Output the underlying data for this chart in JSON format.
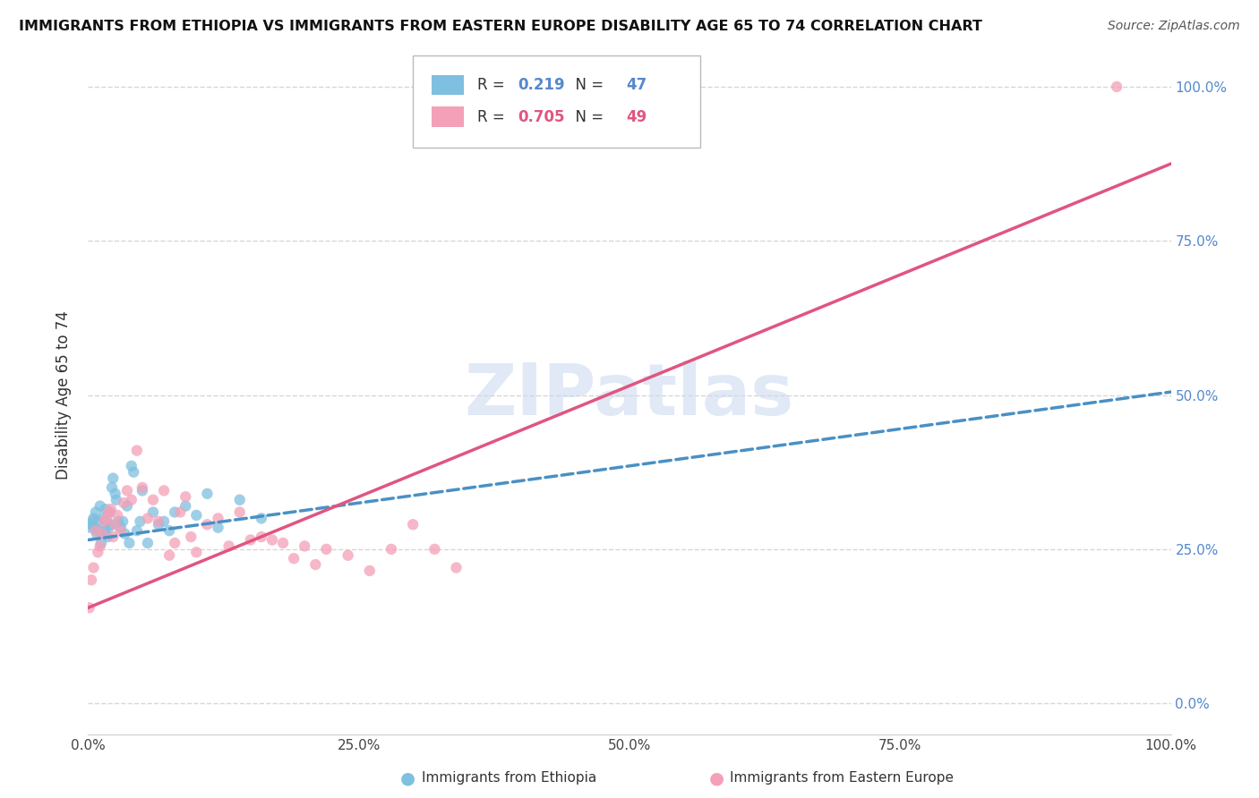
{
  "title": "IMMIGRANTS FROM ETHIOPIA VS IMMIGRANTS FROM EASTERN EUROPE DISABILITY AGE 65 TO 74 CORRELATION CHART",
  "source": "Source: ZipAtlas.com",
  "ylabel": "Disability Age 65 to 74",
  "legend_label_1": "Immigrants from Ethiopia",
  "legend_label_2": "Immigrants from Eastern Europe",
  "R1": 0.219,
  "N1": 47,
  "R2": 0.705,
  "N2": 49,
  "color1": "#7fbfdf",
  "color2": "#f4a0b8",
  "trendline1_color": "#4a90c4",
  "trendline2_color": "#e05580",
  "right_tick_color": "#5588cc",
  "xlim": [
    0.0,
    1.0
  ],
  "ylim": [
    -0.05,
    1.05
  ],
  "ethiopia_x": [
    0.002,
    0.003,
    0.004,
    0.005,
    0.006,
    0.007,
    0.008,
    0.009,
    0.01,
    0.011,
    0.012,
    0.013,
    0.014,
    0.015,
    0.016,
    0.017,
    0.018,
    0.019,
    0.02,
    0.021,
    0.022,
    0.023,
    0.025,
    0.026,
    0.028,
    0.03,
    0.032,
    0.034,
    0.036,
    0.038,
    0.04,
    0.042,
    0.045,
    0.048,
    0.05,
    0.055,
    0.06,
    0.065,
    0.07,
    0.075,
    0.08,
    0.09,
    0.1,
    0.11,
    0.12,
    0.14,
    0.16
  ],
  "ethiopia_y": [
    0.285,
    0.29,
    0.295,
    0.3,
    0.285,
    0.31,
    0.275,
    0.295,
    0.28,
    0.32,
    0.26,
    0.275,
    0.3,
    0.28,
    0.315,
    0.295,
    0.27,
    0.285,
    0.31,
    0.29,
    0.35,
    0.365,
    0.34,
    0.33,
    0.295,
    0.285,
    0.295,
    0.275,
    0.32,
    0.26,
    0.385,
    0.375,
    0.28,
    0.295,
    0.345,
    0.26,
    0.31,
    0.29,
    0.295,
    0.28,
    0.31,
    0.32,
    0.305,
    0.34,
    0.285,
    0.33,
    0.3
  ],
  "eastern_x": [
    0.001,
    0.003,
    0.005,
    0.007,
    0.009,
    0.011,
    0.013,
    0.015,
    0.017,
    0.019,
    0.021,
    0.023,
    0.025,
    0.027,
    0.03,
    0.033,
    0.036,
    0.04,
    0.045,
    0.05,
    0.055,
    0.06,
    0.065,
    0.07,
    0.075,
    0.08,
    0.085,
    0.09,
    0.095,
    0.1,
    0.11,
    0.12,
    0.13,
    0.14,
    0.15,
    0.16,
    0.17,
    0.18,
    0.19,
    0.2,
    0.21,
    0.22,
    0.24,
    0.26,
    0.28,
    0.3,
    0.32,
    0.34,
    0.95
  ],
  "eastern_y": [
    0.155,
    0.2,
    0.22,
    0.28,
    0.245,
    0.255,
    0.275,
    0.295,
    0.3,
    0.31,
    0.315,
    0.27,
    0.29,
    0.305,
    0.28,
    0.325,
    0.345,
    0.33,
    0.41,
    0.35,
    0.3,
    0.33,
    0.295,
    0.345,
    0.24,
    0.26,
    0.31,
    0.335,
    0.27,
    0.245,
    0.29,
    0.3,
    0.255,
    0.31,
    0.265,
    0.27,
    0.265,
    0.26,
    0.235,
    0.255,
    0.225,
    0.25,
    0.24,
    0.215,
    0.25,
    0.29,
    0.25,
    0.22,
    1.0
  ],
  "trendline1_x0": 0.0,
  "trendline1_y0": 0.265,
  "trendline1_x1": 1.0,
  "trendline1_y1": 0.505,
  "trendline2_x0": 0.0,
  "trendline2_y0": 0.155,
  "trendline2_x1": 1.0,
  "trendline2_y1": 0.875,
  "right_yticks": [
    0.0,
    0.25,
    0.5,
    0.75,
    1.0
  ],
  "right_yticklabels": [
    "0.0%",
    "25.0%",
    "50.0%",
    "75.0%",
    "100.0%"
  ],
  "xticks": [
    0.0,
    0.25,
    0.5,
    0.75,
    1.0
  ],
  "xticklabels": [
    "0.0%",
    "25.0%",
    "50.0%",
    "75.0%",
    "100.0%"
  ]
}
